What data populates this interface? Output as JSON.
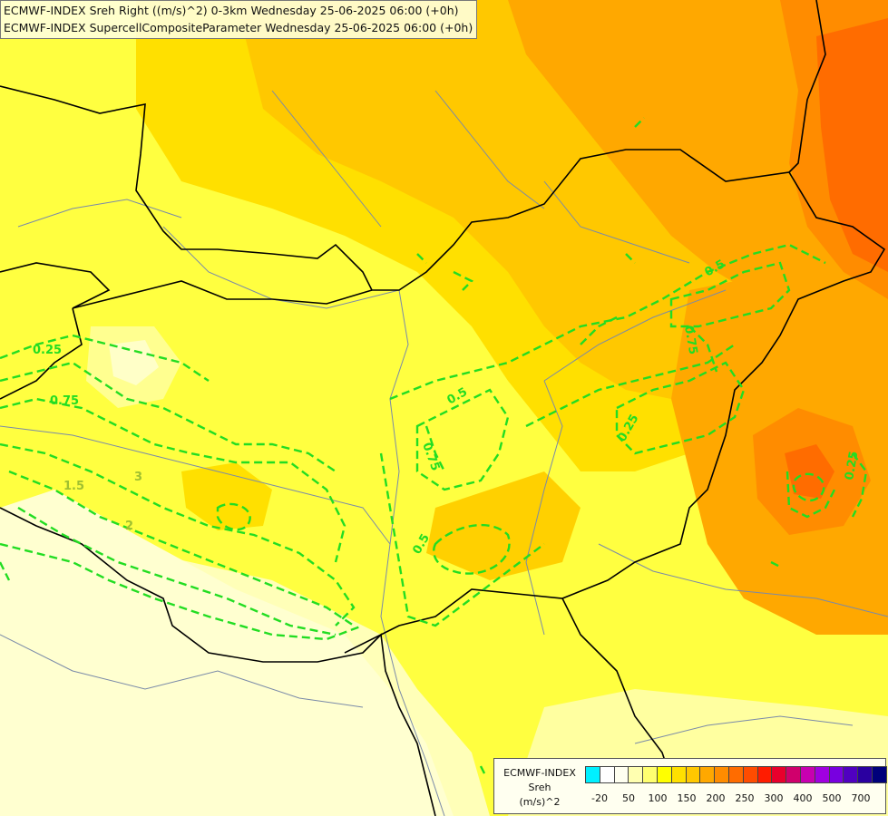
{
  "header": {
    "line1": "ECMWF-INDEX Sreh Right ((m/s)^2) 0-3km Wednesday 25-06-2025 06:00 (+0h)",
    "line2": "ECMWF-INDEX SupercellCompositeParameter Wednesday 25-06-2025 06:00 (+0h)"
  },
  "legend": {
    "title_line1": "ECMWF-INDEX",
    "title_line2": "Sreh",
    "title_line3": "(m/s)^2",
    "swatches": [
      "#00f0ff",
      "#ffffff",
      "#fffff0",
      "#ffffb0",
      "#ffff70",
      "#ffff00",
      "#ffe000",
      "#ffc800",
      "#ffa800",
      "#ff8c00",
      "#ff6c00",
      "#ff4c00",
      "#ff1c00",
      "#e8002c",
      "#d0006c",
      "#c800b0",
      "#a000e0",
      "#7800e0",
      "#5000c0",
      "#2a00a0",
      "#00007a"
    ],
    "ticks": [
      "-20",
      "50",
      "100",
      "150",
      "200",
      "250",
      "300",
      "400",
      "500",
      "700"
    ]
  },
  "contour_labels": [
    "0.25",
    "0.75",
    "0.5",
    "0.75",
    "0.5",
    "0.75",
    "0.25",
    "0.5",
    "0.5",
    "0.25",
    "3",
    "1.5",
    "2",
    "0.75"
  ],
  "colors": {
    "contour": "#22dd22",
    "border": "#000000",
    "river": "#7a8aa8"
  }
}
